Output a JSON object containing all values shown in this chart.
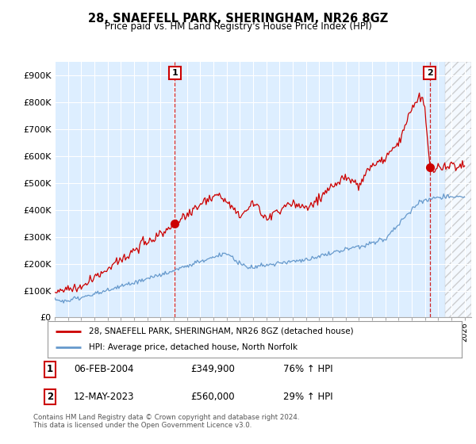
{
  "title": "28, SNAEFELL PARK, SHERINGHAM, NR26 8GZ",
  "subtitle": "Price paid vs. HM Land Registry's House Price Index (HPI)",
  "ylim": [
    0,
    950000
  ],
  "yticks": [
    0,
    100000,
    200000,
    300000,
    400000,
    500000,
    600000,
    700000,
    800000,
    900000
  ],
  "ytick_labels": [
    "£0",
    "£100K",
    "£200K",
    "£300K",
    "£400K",
    "£500K",
    "£600K",
    "£700K",
    "£800K",
    "£900K"
  ],
  "bg_color": "#ffffff",
  "plot_bg_color": "#ddeeff",
  "grid_color": "#ffffff",
  "hpi_color": "#6699cc",
  "price_color": "#cc0000",
  "marker1_x": 2004.08,
  "marker1_y": 349900,
  "marker1_label": "1",
  "marker1_date": "06-FEB-2004",
  "marker1_price": "£349,900",
  "marker1_hpi": "76% ↑ HPI",
  "marker2_x": 2023.36,
  "marker2_y": 560000,
  "marker2_label": "2",
  "marker2_date": "12-MAY-2023",
  "marker2_price": "£560,000",
  "marker2_hpi": "29% ↑ HPI",
  "legend_line1": "28, SNAEFELL PARK, SHERINGHAM, NR26 8GZ (detached house)",
  "legend_line2": "HPI: Average price, detached house, North Norfolk",
  "footnote": "Contains HM Land Registry data © Crown copyright and database right 2024.\nThis data is licensed under the Open Government Licence v3.0.",
  "xlim_left": 1995.0,
  "xlim_right": 2026.5
}
